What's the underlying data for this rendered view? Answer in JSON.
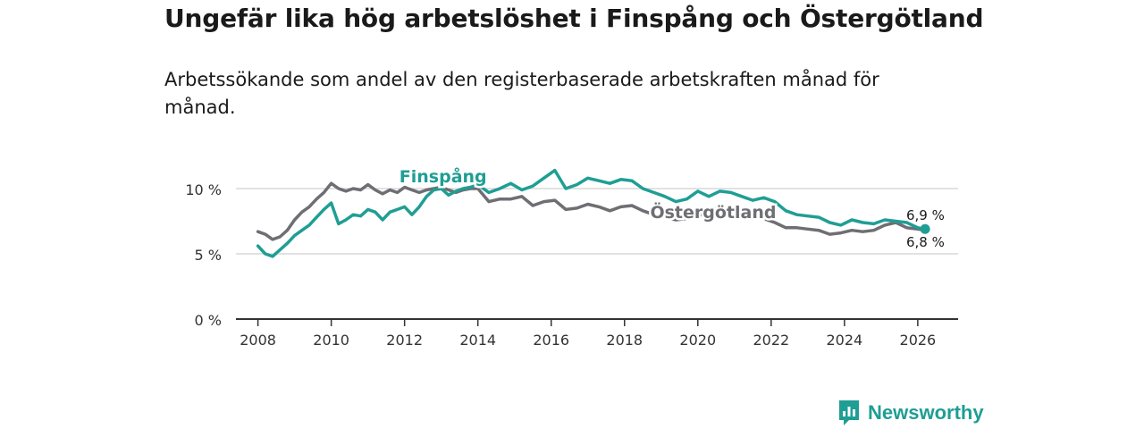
{
  "header": {
    "title": "Ungefär lika hög arbetslöshet i Finspång och Östergötland",
    "subtitle": "Arbetssökande som andel av den registerbaserade arbetskraften månad för månad."
  },
  "brand": {
    "name": "Newsworthy",
    "icon": "newsworthy-logo-icon"
  },
  "colors": {
    "finspang": "#1f9e94",
    "ostergotland": "#6e6e73",
    "grid": "#d9d9d9",
    "axis": "#333333"
  },
  "chart_data": {
    "type": "line",
    "title": "Ungefär lika hög arbetslöshet i Finspång och Östergötland",
    "subtitle": "Arbetssökande som andel av den registerbaserade arbetskraften månad för månad.",
    "xlabel": "",
    "ylabel": "",
    "xlim": [
      2007.4,
      2027.1
    ],
    "ylim": [
      0,
      10.5
    ],
    "yticks": [
      0,
      5,
      10
    ],
    "ytick_labels": [
      "0 %",
      "5 %",
      "10 %"
    ],
    "xticks": [
      2008,
      2010,
      2012,
      2014,
      2016,
      2018,
      2020,
      2022,
      2024,
      2026
    ],
    "xtick_labels": [
      "2008",
      "2010",
      "2012",
      "2014",
      "2016",
      "2018",
      "2020",
      "2022",
      "2024",
      "2026"
    ],
    "grid": true,
    "legend": "inline labels",
    "series": [
      {
        "name": "Östergötland",
        "label": "Östergötland",
        "end_label": "6,8 %",
        "x": [
          2008.0,
          2008.2,
          2008.4,
          2008.6,
          2008.8,
          2009.0,
          2009.2,
          2009.4,
          2009.6,
          2009.8,
          2010.0,
          2010.2,
          2010.4,
          2010.6,
          2010.8,
          2011.0,
          2011.2,
          2011.4,
          2011.6,
          2011.8,
          2012.0,
          2012.2,
          2012.4,
          2012.6,
          2012.8,
          2013.0,
          2013.2,
          2013.4,
          2013.6,
          2013.8,
          2014.0,
          2014.3,
          2014.6,
          2014.9,
          2015.2,
          2015.5,
          2015.8,
          2016.1,
          2016.4,
          2016.7,
          2017.0,
          2017.3,
          2017.6,
          2017.9,
          2018.2,
          2018.5,
          2018.8,
          2019.1,
          2019.4,
          2019.7,
          2020.0,
          2020.3,
          2020.6,
          2020.9,
          2021.2,
          2021.5,
          2021.8,
          2022.1,
          2022.4,
          2022.7,
          2023.0,
          2023.3,
          2023.6,
          2023.9,
          2024.2,
          2024.5,
          2024.8,
          2025.1,
          2025.4,
          2025.7,
          2026.0,
          2026.2
        ],
        "values": [
          6.7,
          6.5,
          6.1,
          6.3,
          6.8,
          7.6,
          8.2,
          8.6,
          9.2,
          9.7,
          10.4,
          10.0,
          9.8,
          10.0,
          9.9,
          10.3,
          9.9,
          9.6,
          9.9,
          9.7,
          10.1,
          9.9,
          9.7,
          9.9,
          10.0,
          10.1,
          9.9,
          9.7,
          9.9,
          10.0,
          10.0,
          9.0,
          9.2,
          9.2,
          9.4,
          8.7,
          9.0,
          9.1,
          8.4,
          8.5,
          8.8,
          8.6,
          8.3,
          8.6,
          8.7,
          8.3,
          8.0,
          7.8,
          7.6,
          7.7,
          7.9,
          8.2,
          8.6,
          8.4,
          8.2,
          7.9,
          7.7,
          7.4,
          7.0,
          7.0,
          6.9,
          6.8,
          6.5,
          6.6,
          6.8,
          6.7,
          6.8,
          7.2,
          7.4,
          7.0,
          6.9,
          6.8
        ]
      },
      {
        "name": "Finspång",
        "label": "Finspång",
        "end_label": "6,9 %",
        "x": [
          2008.0,
          2008.2,
          2008.4,
          2008.6,
          2008.8,
          2009.0,
          2009.2,
          2009.4,
          2009.6,
          2009.8,
          2010.0,
          2010.2,
          2010.4,
          2010.6,
          2010.8,
          2011.0,
          2011.2,
          2011.4,
          2011.6,
          2011.8,
          2012.0,
          2012.2,
          2012.4,
          2012.6,
          2012.8,
          2013.0,
          2013.2,
          2013.4,
          2013.6,
          2013.8,
          2014.0,
          2014.3,
          2014.6,
          2014.9,
          2015.2,
          2015.5,
          2015.8,
          2016.1,
          2016.4,
          2016.7,
          2017.0,
          2017.3,
          2017.6,
          2017.9,
          2018.2,
          2018.5,
          2018.8,
          2019.1,
          2019.4,
          2019.7,
          2020.0,
          2020.3,
          2020.6,
          2020.9,
          2021.2,
          2021.5,
          2021.8,
          2022.1,
          2022.4,
          2022.7,
          2023.0,
          2023.3,
          2023.6,
          2023.9,
          2024.2,
          2024.5,
          2024.8,
          2025.1,
          2025.4,
          2025.7,
          2026.0,
          2026.2
        ],
        "values": [
          5.6,
          5.0,
          4.8,
          5.3,
          5.8,
          6.4,
          6.8,
          7.2,
          7.8,
          8.4,
          8.9,
          7.3,
          7.6,
          8.0,
          7.9,
          8.4,
          8.2,
          7.6,
          8.2,
          8.4,
          8.6,
          8.0,
          8.6,
          9.4,
          9.9,
          10.0,
          9.5,
          9.8,
          10.0,
          10.1,
          10.3,
          9.7,
          10.0,
          10.4,
          9.9,
          10.2,
          10.8,
          11.4,
          10.0,
          10.3,
          10.8,
          10.6,
          10.4,
          10.7,
          10.6,
          10.0,
          9.7,
          9.4,
          9.0,
          9.2,
          9.8,
          9.4,
          9.8,
          9.7,
          9.4,
          9.1,
          9.3,
          9.0,
          8.3,
          8.0,
          7.9,
          7.8,
          7.4,
          7.2,
          7.6,
          7.4,
          7.3,
          7.6,
          7.5,
          7.4,
          7.0,
          6.9
        ]
      }
    ]
  }
}
